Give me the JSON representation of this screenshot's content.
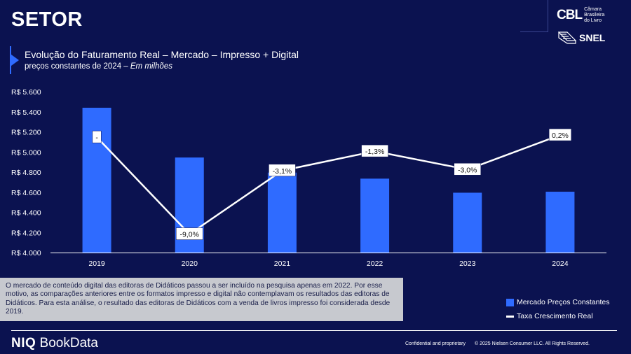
{
  "header": {
    "title": "SETOR",
    "logo_cbl_mark": "CBL",
    "logo_cbl_text": [
      "Câmara",
      "Brasileira",
      "do Livro"
    ],
    "logo_snel_text": "SNEL"
  },
  "chart_header": {
    "title": "Evolução do Faturamento Real – Mercado – Impresso + Digital",
    "subtitle_plain": "preços constantes de 2024 – ",
    "subtitle_italic": "Em milhões"
  },
  "chart_data": {
    "type": "bar",
    "categories": [
      "2019",
      "2020",
      "2021",
      "2022",
      "2023",
      "2024"
    ],
    "ylim": [
      4000,
      5600
    ],
    "yticks": [
      4000,
      4200,
      4400,
      4600,
      4800,
      5000,
      5200,
      5400,
      5600
    ],
    "ytick_labels": [
      "R$ 4.000",
      "R$ 4.200",
      "R$ 4.400",
      "R$ 4.600",
      "R$ 4.800",
      "R$ 5.000",
      "R$ 5.200",
      "R$ 5.400",
      "R$ 5.600"
    ],
    "series": [
      {
        "name": "Mercado Preços Constantes",
        "type": "bar",
        "color": "#2f6bff",
        "values": [
          5440,
          4945,
          4795,
          4735,
          4595,
          4605
        ]
      },
      {
        "name": "Taxa Crescimento Real",
        "type": "line",
        "color": "#ffffff",
        "values": [
          0,
          -9.0,
          -3.1,
          -1.3,
          -3.0,
          0.2
        ],
        "labels": [
          "-",
          "-9,0%",
          "-3,1%",
          "-1,3%",
          "-3,0%",
          "0,2%"
        ]
      }
    ]
  },
  "note": {
    "text": "O mercado de conteúdo digital das editoras de Didáticos passou a ser incluído na pesquisa apenas em 2022. Por esse motivo, as comparações anteriores entre os formatos impresso e digital não contemplavam os resultados das editoras de Didáticos. Para esta análise, o resultado das editoras de Didáticos com a venda de livros impresso foi considerada desde 2019."
  },
  "legend": {
    "bar_label": "Mercado Preços Constantes",
    "line_label": "Taxa Crescimento Real"
  },
  "footer": {
    "brand_niq": "NIQ",
    "brand_bookdata": " BookData",
    "confidential": "Confidential and proprietary",
    "copyright": "© 2025 Nielsen Consumer LLC. All Rights Reserved."
  }
}
